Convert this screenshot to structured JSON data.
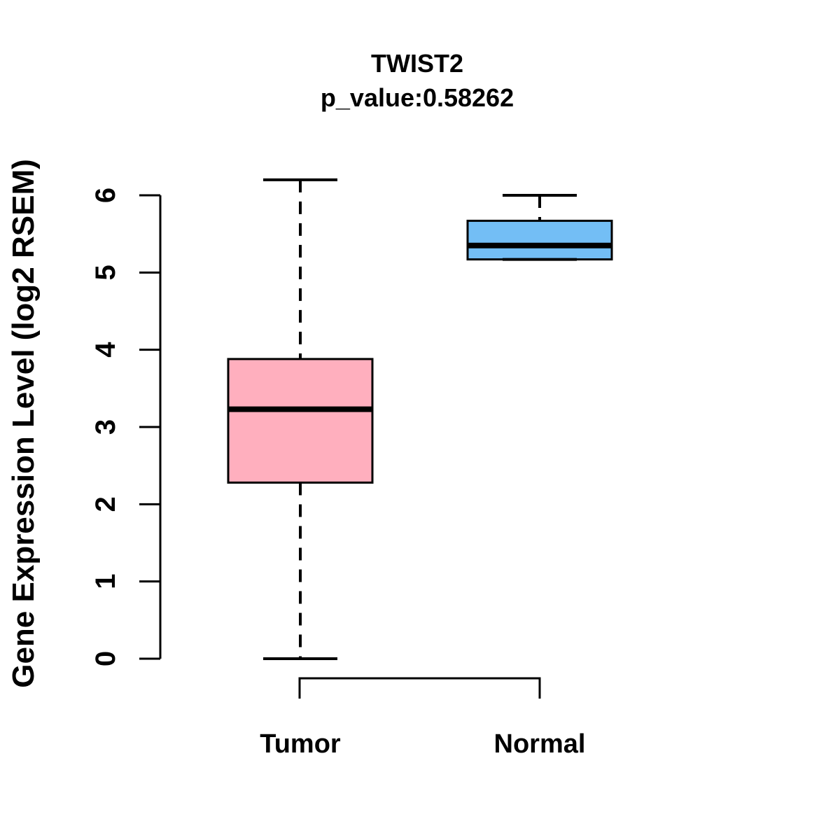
{
  "figure": {
    "background_color": "#FFFFFF",
    "foreground_color": "#000000"
  },
  "chart_data": {
    "type": "boxplot",
    "title": "TWIST2",
    "subtitle": "p_value:0.58262",
    "ylabel": "Gene Expression Level (log2 RSEM)",
    "xlabel": "",
    "yticks": [
      0,
      1,
      2,
      3,
      4,
      5,
      6
    ],
    "ylim": [
      0,
      6.2
    ],
    "grid": false,
    "legend_position": "none",
    "categories": [
      "Tumor",
      "Normal"
    ],
    "groups": [
      {
        "label": "Tumor",
        "fill_color": "#FFAFBE",
        "whisker_low": 0.0,
        "q1": 2.28,
        "median": 3.23,
        "q3": 3.88,
        "whisker_high": 6.2
      },
      {
        "label": "Normal",
        "fill_color": "#73BEF5",
        "whisker_low": 5.17,
        "q1": 5.17,
        "median": 5.35,
        "q3": 5.67,
        "whisker_high": 6.0
      }
    ]
  }
}
